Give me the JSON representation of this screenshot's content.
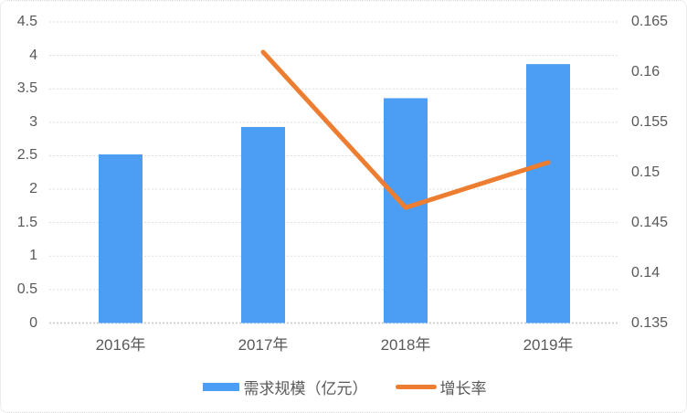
{
  "chart_data": {
    "type": "combo",
    "categories": [
      "2016年",
      "2017年",
      "2018年",
      "2019年"
    ],
    "series": [
      {
        "name": "需求规模（亿元）",
        "type": "bar",
        "axis": "left",
        "values": [
          2.52,
          2.93,
          3.36,
          3.87
        ],
        "color": "#4B9EF4"
      },
      {
        "name": "增长率",
        "type": "line",
        "axis": "right",
        "values": [
          null,
          0.162,
          0.1465,
          0.151
        ],
        "color": "#ED7D31"
      }
    ],
    "left_axis": {
      "min": 0,
      "max": 4.5,
      "step": 0.5,
      "ticks_top_to_bottom": [
        "4.5",
        "4",
        "3.5",
        "3",
        "2.5",
        "2",
        "1.5",
        "1",
        "0.5",
        "0"
      ]
    },
    "right_axis": {
      "min": 0.135,
      "max": 0.165,
      "step": 0.005,
      "ticks_top_to_bottom": [
        "0.165",
        "0.16",
        "0.155",
        "0.15",
        "0.145",
        "0.14",
        "0.135"
      ]
    },
    "title": "",
    "xlabel": "",
    "ylabel": "",
    "grid": true,
    "legend_position": "bottom"
  },
  "colors": {
    "bar": "#4B9EF4",
    "line": "#ED7D31",
    "grid": "#D9D9D9",
    "axis_line": "#C6C6C6",
    "text": "#595959",
    "border": "#D9D9D9"
  }
}
